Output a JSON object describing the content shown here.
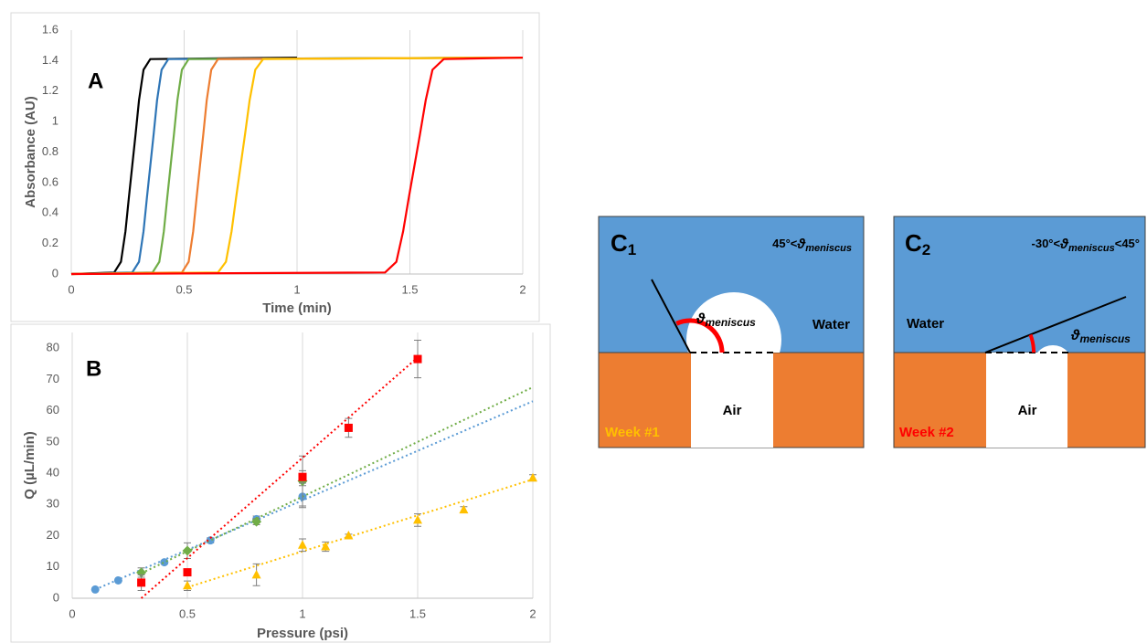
{
  "chart_data": [
    {
      "type": "line",
      "label": "A",
      "xlabel": "Time (min)",
      "ylabel": "Absorbance (AU)",
      "xlim": [
        0,
        2
      ],
      "ylim": [
        0,
        1.6
      ],
      "xticks": [
        0,
        0.5,
        1,
        1.5,
        2
      ],
      "yticks": [
        0,
        0.2,
        0.4,
        0.6,
        0.8,
        1,
        1.2,
        1.4,
        1.6
      ],
      "grid": true,
      "series": [
        {
          "color": "#000000",
          "x": [
            0,
            0.19,
            0.22,
            0.24,
            0.255,
            0.27,
            0.285,
            0.3,
            0.32,
            0.35,
            1
          ],
          "values": [
            0,
            0.01,
            0.08,
            0.28,
            0.5,
            0.71,
            0.92,
            1.14,
            1.34,
            1.41,
            1.42
          ]
        },
        {
          "color": "#2e75b6",
          "x": [
            0,
            0.27,
            0.3,
            0.32,
            0.335,
            0.35,
            0.365,
            0.38,
            0.4,
            0.43,
            2
          ],
          "values": [
            0,
            0.01,
            0.08,
            0.28,
            0.5,
            0.71,
            0.92,
            1.14,
            1.34,
            1.41,
            1.42
          ]
        },
        {
          "color": "#70ad47",
          "x": [
            0,
            0.36,
            0.39,
            0.41,
            0.425,
            0.44,
            0.455,
            0.47,
            0.49,
            0.52,
            2
          ],
          "values": [
            0,
            0.01,
            0.08,
            0.28,
            0.5,
            0.71,
            0.92,
            1.14,
            1.34,
            1.41,
            1.42
          ]
        },
        {
          "color": "#ed7d31",
          "x": [
            0,
            0.49,
            0.52,
            0.54,
            0.555,
            0.57,
            0.585,
            0.6,
            0.62,
            0.65,
            2
          ],
          "values": [
            0,
            0.01,
            0.08,
            0.28,
            0.5,
            0.71,
            0.92,
            1.14,
            1.34,
            1.41,
            1.42
          ]
        },
        {
          "color": "#ffc000",
          "x": [
            0,
            0.65,
            0.685,
            0.71,
            0.73,
            0.75,
            0.77,
            0.79,
            0.815,
            0.85,
            2
          ],
          "values": [
            0,
            0.01,
            0.08,
            0.28,
            0.5,
            0.71,
            0.92,
            1.14,
            1.34,
            1.41,
            1.42
          ]
        },
        {
          "color": "#ff0000",
          "x": [
            0,
            1.39,
            1.44,
            1.47,
            1.495,
            1.52,
            1.545,
            1.57,
            1.6,
            1.65,
            2
          ],
          "values": [
            0,
            0.01,
            0.08,
            0.28,
            0.5,
            0.71,
            0.92,
            1.14,
            1.34,
            1.41,
            1.42
          ]
        }
      ]
    },
    {
      "type": "scatter",
      "label": "B",
      "xlabel": "Pressure (psi)",
      "ylabel": "Q (µL/min)",
      "xlim": [
        0,
        2
      ],
      "ylim": [
        0,
        85
      ],
      "xticks": [
        0,
        0.5,
        1,
        1.5,
        2
      ],
      "yticks": [
        0,
        10,
        20,
        30,
        40,
        50,
        60,
        70,
        80
      ],
      "grid": true,
      "series": [
        {
          "color": "#5b9bd5",
          "marker": "circle",
          "x": [
            0.1,
            0.2,
            0.4,
            0.6,
            0.8,
            1.0
          ],
          "values": [
            2.8,
            5.7,
            11.5,
            18.5,
            25.3,
            32.5
          ],
          "errors": [
            0.3,
            0.3,
            0.5,
            0.8,
            1,
            3.5
          ],
          "trendline": {
            "x": [
              0.1,
              2
            ],
            "y": [
              2.8,
              63
            ]
          }
        },
        {
          "color": "#70ad47",
          "marker": "diamond",
          "x": [
            0.3,
            0.5,
            0.8,
            1.0
          ],
          "values": [
            8.2,
            15.2,
            24.5,
            37.5
          ],
          "errors": [
            1.5,
            2.5,
            1,
            8
          ],
          "trendline": {
            "x": [
              0.3,
              2
            ],
            "y": [
              8,
              67.5
            ]
          }
        },
        {
          "color": "#ff0000",
          "marker": "square",
          "x": [
            0.3,
            0.5,
            1.0,
            1.2,
            1.5
          ],
          "values": [
            5,
            8.3,
            38.8,
            54.5,
            76.5
          ],
          "errors": [
            2.5,
            1,
            2,
            3,
            6
          ],
          "trendline": {
            "x": [
              0.3,
              1.5
            ],
            "y": [
              0,
              77
            ]
          }
        },
        {
          "color": "#ffc000",
          "marker": "triangle",
          "x": [
            0.5,
            0.8,
            1.0,
            1.1,
            1.2,
            1.5,
            1.7,
            2.0
          ],
          "values": [
            4,
            7.5,
            17,
            16.5,
            20,
            25,
            28.3,
            38.5
          ],
          "errors": [
            1.5,
            3.5,
            2,
            1.5,
            0.5,
            2,
            1,
            1
          ],
          "trendline": {
            "x": [
              0.5,
              2
            ],
            "y": [
              3.5,
              38
            ]
          }
        }
      ]
    }
  ],
  "diagrams": [
    {
      "label": "C",
      "label_sub": "1",
      "condition": {
        "prefix": "45°<",
        "symbol": "ϑ",
        "sub": "meniscus"
      },
      "angle": {
        "symbol": "ϑ",
        "sub": "meniscus"
      },
      "water": "Water",
      "air": "Air",
      "week": "Week #1"
    },
    {
      "label": "C",
      "label_sub": "2",
      "condition": {
        "prefix": "-30°<",
        "symbol": "ϑ",
        "sub": "meniscus",
        "suffix": "<45°"
      },
      "angle": {
        "symbol": "ϑ",
        "sub": "meniscus"
      },
      "water": "Water",
      "air": "Air",
      "week": "Week #2"
    }
  ]
}
